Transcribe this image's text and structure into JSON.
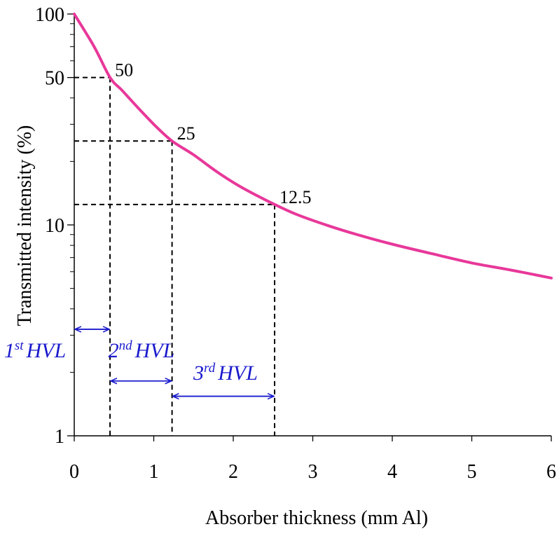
{
  "chart_data": {
    "type": "line",
    "xlabel": "Absorber thickness (mm Al)",
    "ylabel": "Transmitted intensity (%)",
    "xlim": [
      0,
      6
    ],
    "ylim": [
      1,
      100
    ],
    "yscale": "log",
    "grid": false,
    "x_ticks": [
      "0",
      "1",
      "2",
      "3",
      "4",
      "5",
      "6"
    ],
    "y_ticks": [
      "1",
      "10",
      "50",
      "100"
    ],
    "series": [
      {
        "x": [
          0,
          0.25,
          0.45,
          0.6,
          0.8,
          1.0,
          1.23,
          1.5,
          1.8,
          2.1,
          2.52,
          2.8,
          3.2,
          3.6,
          4.0,
          4.5,
          5.0,
          5.5,
          6.0
        ],
        "y": [
          100,
          70,
          50,
          43.5,
          36,
          30,
          25,
          21.5,
          17.8,
          15.1,
          12.5,
          11.2,
          9.9,
          8.9,
          8.1,
          7.3,
          6.6,
          6.1,
          5.6
        ],
        "color": "#e8389a"
      }
    ],
    "annotations": {
      "points": [
        {
          "x": 0.45,
          "y": 50,
          "label": "50"
        },
        {
          "x": 1.23,
          "y": 25,
          "label": "25"
        },
        {
          "x": 2.52,
          "y": 12.5,
          "label": "12.5"
        }
      ],
      "hvl": [
        {
          "num": "1",
          "sup": "st",
          "text": "HVL",
          "from": 0,
          "to": 0.45,
          "arrow_y": 3.2
        },
        {
          "num": "2",
          "sup": "nd",
          "text": "HVL",
          "from": 0.45,
          "to": 1.23,
          "arrow_y": 1.82
        },
        {
          "num": "3",
          "sup": "rd",
          "text": "HVL",
          "from": 1.23,
          "to": 2.52,
          "arrow_y": 1.54
        }
      ],
      "arrow_color": "#1a1acd"
    }
  }
}
